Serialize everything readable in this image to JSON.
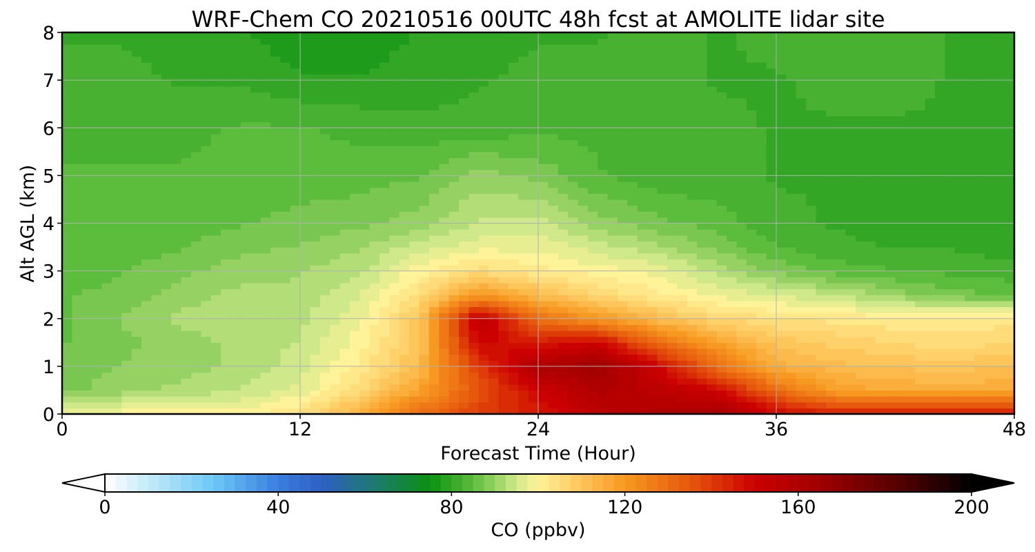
{
  "chart_data": {
    "type": "heatmap",
    "subtype": "filled-contour time-height cross-section",
    "title": "WRF-Chem CO  20210516 00UTC 48h fcst at AMOLITE lidar site",
    "xlabel": "Forecast Time (Hour)",
    "ylabel": "Alt AGL (km)",
    "xlim": [
      0,
      48
    ],
    "ylim": [
      0,
      8
    ],
    "x_ticks": [
      0,
      12,
      24,
      36,
      48
    ],
    "y_ticks": [
      0,
      1,
      2,
      3,
      4,
      5,
      6,
      7,
      8
    ],
    "grid": true,
    "colorbar": {
      "label": "CO  (ppbv)",
      "range": [
        0,
        200
      ],
      "ticks": [
        0,
        40,
        80,
        120,
        160,
        200
      ],
      "extend": "both",
      "orientation": "horizontal",
      "palette": [
        {
          "value": 0,
          "color": "#ffffff"
        },
        {
          "value": 12,
          "color": "#b8e6f8"
        },
        {
          "value": 25,
          "color": "#6cc8f5"
        },
        {
          "value": 40,
          "color": "#3b7ee0"
        },
        {
          "value": 50,
          "color": "#2e5fc4"
        },
        {
          "value": 62,
          "color": "#1e7a70"
        },
        {
          "value": 75,
          "color": "#0a9010"
        },
        {
          "value": 85,
          "color": "#5cbc3c"
        },
        {
          "value": 95,
          "color": "#cfe88a"
        },
        {
          "value": 100,
          "color": "#fff39a"
        },
        {
          "value": 110,
          "color": "#fdc55a"
        },
        {
          "value": 120,
          "color": "#f79820"
        },
        {
          "value": 135,
          "color": "#e6580c"
        },
        {
          "value": 150,
          "color": "#cc0000"
        },
        {
          "value": 165,
          "color": "#a00000"
        },
        {
          "value": 185,
          "color": "#4c0000"
        },
        {
          "value": 200,
          "color": "#000000"
        }
      ]
    },
    "field": {
      "description": "approximate CO (ppbv) sampled on a coarse time-height grid",
      "time_hours": [
        0,
        3,
        6,
        9,
        12,
        15,
        18,
        21,
        24,
        27,
        30,
        33,
        36,
        39,
        42,
        45,
        48
      ],
      "alt_km": [
        0,
        0.5,
        1,
        1.5,
        2,
        2.5,
        3,
        3.5,
        4,
        5,
        6,
        7,
        8
      ],
      "values": [
        [
          100,
          100,
          100,
          100,
          104,
          115,
          130,
          140,
          145,
          155,
          160,
          162,
          150,
          145,
          145,
          145,
          145
        ],
        [
          88,
          90,
          92,
          94,
          97,
          105,
          118,
          135,
          150,
          160,
          155,
          150,
          130,
          118,
          116,
          115,
          116
        ],
        [
          87,
          89,
          90,
          92,
          95,
          102,
          112,
          140,
          160,
          165,
          150,
          130,
          115,
          112,
          111,
          110,
          112
        ],
        [
          86,
          88,
          90,
          92,
          94,
          100,
          110,
          150,
          145,
          150,
          130,
          118,
          110,
          108,
          106,
          105,
          106
        ],
        [
          86,
          89,
          92,
          93,
          93,
          98,
          110,
          155,
          130,
          120,
          112,
          106,
          104,
          103,
          102,
          102,
          103
        ],
        [
          86,
          87,
          90,
          92,
          92,
          96,
          105,
          120,
          112,
          106,
          102,
          98,
          96,
          94,
          90,
          87,
          86
        ],
        [
          85,
          86,
          88,
          90,
          91,
          93,
          100,
          105,
          102,
          100,
          98,
          93,
          88,
          85,
          84,
          83,
          82
        ],
        [
          85,
          85,
          86,
          88,
          89,
          91,
          95,
          98,
          98,
          95,
          92,
          88,
          84,
          82,
          81,
          81,
          80
        ],
        [
          84,
          84,
          85,
          86,
          87,
          88,
          90,
          94,
          95,
          90,
          87,
          85,
          82,
          81,
          80,
          80,
          80
        ],
        [
          84,
          84,
          84,
          85,
          85,
          85,
          86,
          90,
          88,
          84,
          82,
          82,
          81,
          81,
          80,
          80,
          80
        ],
        [
          83,
          83,
          83,
          84,
          84,
          83,
          82,
          82,
          83,
          83,
          82,
          82,
          81,
          81,
          81,
          81,
          80
        ],
        [
          82,
          82,
          81,
          81,
          79,
          79,
          80,
          81,
          82,
          82,
          82,
          81,
          81,
          82,
          82,
          81,
          80
        ],
        [
          81,
          81,
          80,
          79,
          77,
          77,
          79,
          80,
          81,
          81,
          82,
          81,
          82,
          83,
          82,
          81,
          80
        ]
      ]
    }
  }
}
